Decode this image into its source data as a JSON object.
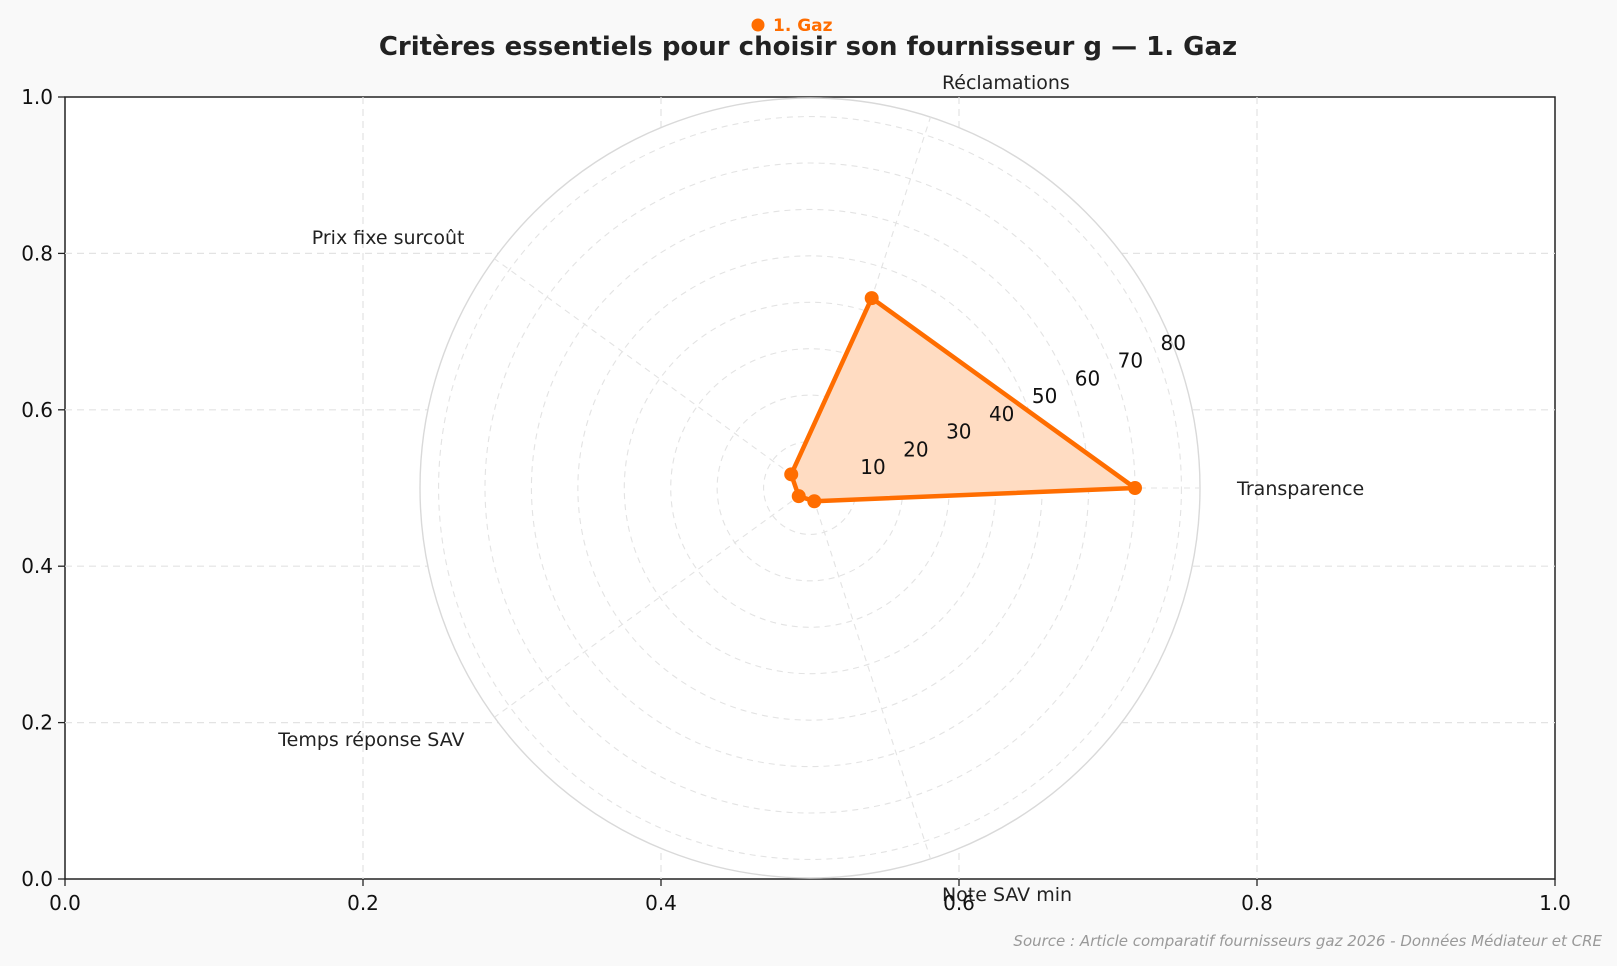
{
  "title": "Critères essentiels pour choisir son fournisseur g — 1. Gaz",
  "source": "Source : Article comparatif fournisseurs gaz 2026 - Données Médiateur et CRE",
  "colors": {
    "series": "#ff6d00",
    "fill": "#ffdcc2",
    "grid": "#e3e3e3",
    "frame": "#222222",
    "background": "#f9f9f9",
    "plot_background": "#ffffff"
  },
  "chart_data": {
    "type": "radar",
    "title": "Critères essentiels pour choisir son fournisseur g — 1. Gaz",
    "categories": [
      "Transparence",
      "Réclamations",
      "Prix fixe surcoût",
      "Temps réponse SAV",
      "Note SAV min"
    ],
    "series": [
      {
        "name": "1. Gaz",
        "values": [
          70,
          43,
          5,
          3,
          3
        ]
      }
    ],
    "radial_ticks": [
      "10",
      "20",
      "30",
      "40",
      "50",
      "60",
      "70",
      "80"
    ],
    "radial_range": [
      0,
      84
    ],
    "cartesian_frame": {
      "x_ticks": [
        "0.0",
        "0.2",
        "0.4",
        "0.6",
        "0.8",
        "1.0"
      ],
      "y_ticks": [
        "0.0",
        "0.2",
        "0.4",
        "0.6",
        "0.8",
        "1.0"
      ],
      "xlim": [
        0,
        1
      ],
      "ylim": [
        0,
        1
      ]
    },
    "grid": true,
    "legend_position": "top-center"
  }
}
